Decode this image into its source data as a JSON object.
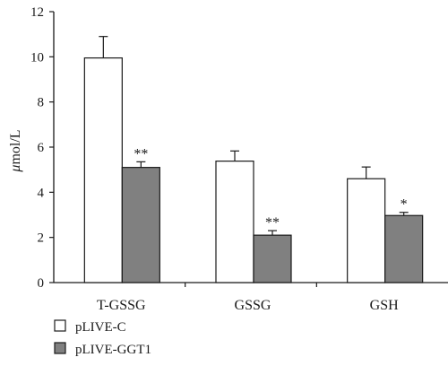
{
  "chart_data": {
    "type": "bar",
    "categories": [
      "T-GSSG",
      "GSSG",
      "GSH"
    ],
    "series": [
      {
        "name": "pLIVE-C",
        "values": [
          9.95,
          5.38,
          4.6
        ],
        "errors": [
          0.95,
          0.45,
          0.52
        ],
        "color": "#ffffff"
      },
      {
        "name": "pLIVE-GGT1",
        "values": [
          5.1,
          2.1,
          2.97
        ],
        "errors": [
          0.25,
          0.2,
          0.14
        ],
        "color": "#808080"
      }
    ],
    "significance": [
      {
        "series": 1,
        "category": 0,
        "label": "**"
      },
      {
        "series": 1,
        "category": 1,
        "label": "**"
      },
      {
        "series": 1,
        "category": 2,
        "label": "*"
      }
    ],
    "ylabel_symbol": "μ",
    "ylabel_rest": "mol/L",
    "ylim": [
      0,
      12
    ],
    "yticks": [
      "0",
      "2",
      "4",
      "6",
      "8",
      "10",
      "12"
    ],
    "legend_position": "bottom-left",
    "grid": false
  }
}
